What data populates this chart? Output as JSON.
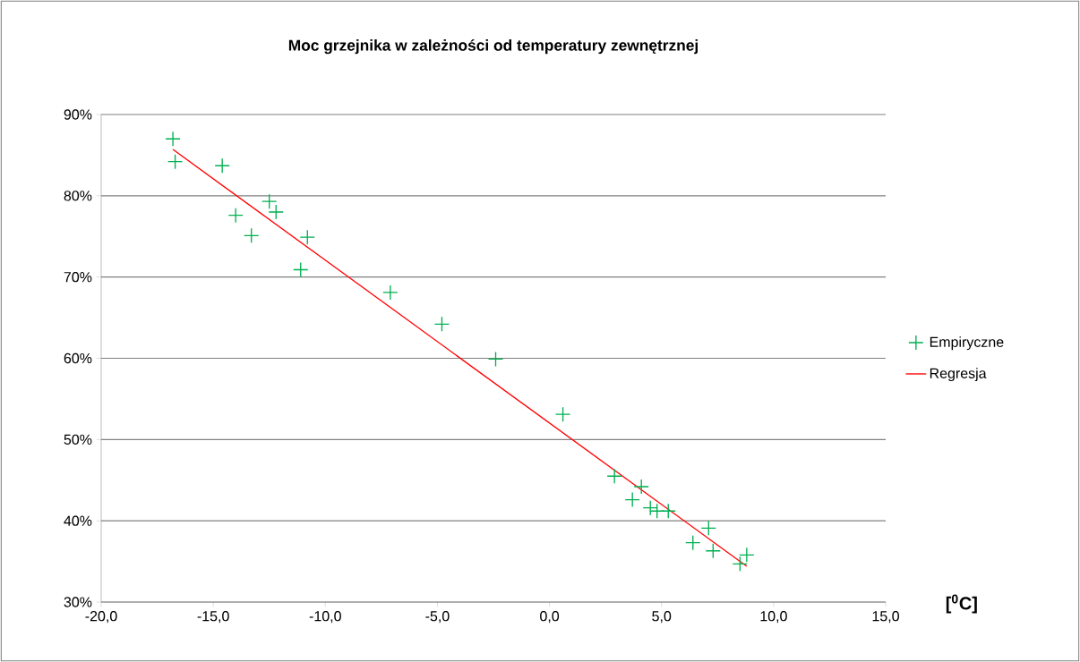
{
  "chart_data": {
    "type": "scatter",
    "title": "Moc grzejnika w zależności od temperatury zewnętrznej",
    "xlabel": "[$^{0}$C]",
    "xlim": [
      -20,
      15
    ],
    "ylim": [
      30,
      90
    ],
    "xticks": [
      {
        "value": -20,
        "label": "-20,0"
      },
      {
        "value": -15,
        "label": "-15,0"
      },
      {
        "value": -10,
        "label": "-10,0"
      },
      {
        "value": -5,
        "label": "-5,0"
      },
      {
        "value": 0,
        "label": "0,0"
      },
      {
        "value": 5,
        "label": "5,0"
      },
      {
        "value": 10,
        "label": "10,0"
      },
      {
        "value": 15,
        "label": "15,0"
      }
    ],
    "yticks": [
      {
        "value": 30,
        "label": "30%"
      },
      {
        "value": 40,
        "label": "40%"
      },
      {
        "value": 50,
        "label": "50%"
      },
      {
        "value": 60,
        "label": "60%"
      },
      {
        "value": 70,
        "label": "70%"
      },
      {
        "value": 80,
        "label": "80%"
      },
      {
        "value": 90,
        "label": "90%"
      }
    ],
    "grid": "y",
    "legend": "right",
    "series": [
      {
        "name": "Empiryczne",
        "marker": "cross",
        "color": "#00b050",
        "x": [
          -16.8,
          -16.7,
          -14.6,
          -12.5,
          -12.2,
          -14.0,
          -13.3,
          -10.8,
          -11.1,
          -7.1,
          -4.8,
          -2.4,
          0.6,
          2.9,
          4.1,
          3.7,
          4.5,
          4.8,
          5.3,
          7.1,
          6.4,
          7.3,
          8.8,
          8.5
        ],
        "values": [
          87.0,
          84.2,
          83.7,
          79.3,
          78.0,
          77.6,
          75.1,
          74.9,
          70.9,
          68.1,
          64.2,
          59.9,
          53.1,
          45.5,
          44.2,
          42.6,
          41.6,
          41.2,
          41.2,
          39.1,
          37.3,
          36.3,
          35.8,
          34.7
        ]
      },
      {
        "name": "Regresja",
        "type": "line",
        "marker": "none",
        "color": "#ff0000",
        "x": [
          -16.8,
          8.8
        ],
        "values": [
          85.7,
          34.4
        ]
      }
    ]
  }
}
